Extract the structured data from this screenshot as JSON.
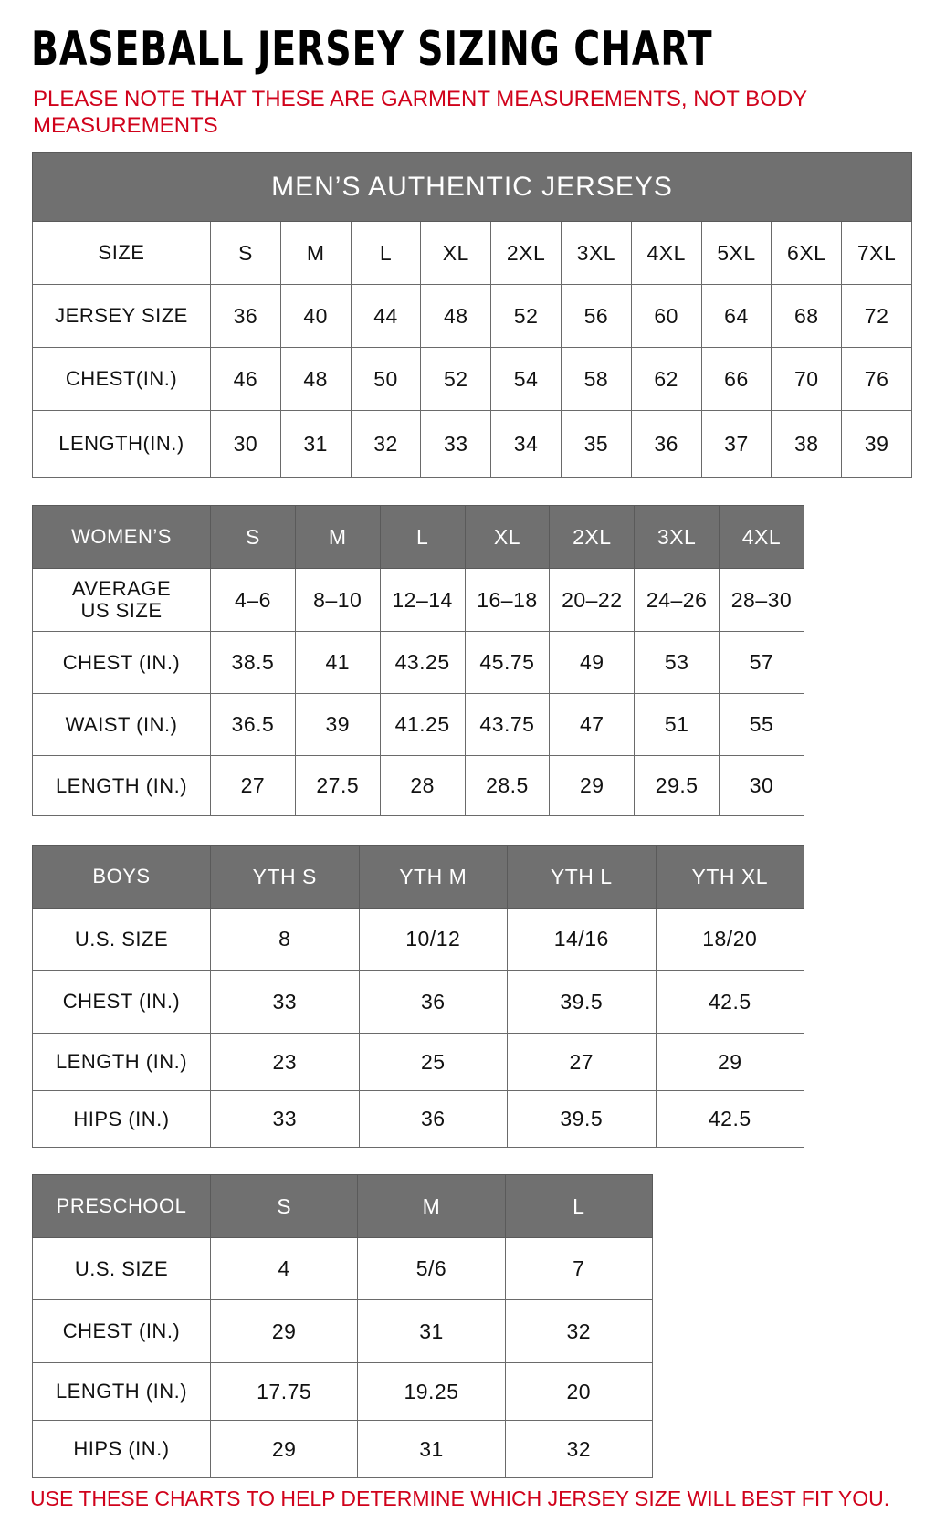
{
  "title": "BASEBALL JERSEY SIZING CHART",
  "note": "PLEASE NOTE THAT THESE ARE GARMENT MEASUREMENTS, NOT BODY MEASUREMENTS",
  "footer": "USE THESE CHARTS TO HELP DETERMINE WHICH JERSEY SIZE WILL BEST FIT YOU.",
  "colors": {
    "header_gray": "#707070",
    "note_red": "#d0021b",
    "border": "#6a6a6a"
  },
  "tables": [
    {
      "id": "mens",
      "caption": "MEN’S AUTHENTIC JERSEYS",
      "header": [
        "SIZE",
        "S",
        "M",
        "L",
        "XL",
        "2XL",
        "3XL",
        "4XL",
        "5XL",
        "6XL",
        "7XL"
      ],
      "header_style": "white",
      "rows": [
        [
          "JERSEY SIZE",
          "36",
          "40",
          "44",
          "48",
          "52",
          "56",
          "60",
          "64",
          "68",
          "72"
        ],
        [
          "CHEST(IN.)",
          "46",
          "48",
          "50",
          "52",
          "54",
          "58",
          "62",
          "66",
          "70",
          "76"
        ],
        [
          "LENGTH(IN.)",
          "30",
          "31",
          "32",
          "33",
          "34",
          "35",
          "36",
          "37",
          "38",
          "39"
        ]
      ]
    },
    {
      "id": "womens",
      "header": [
        "WOMEN’S",
        "S",
        "M",
        "L",
        "XL",
        "2XL",
        "3XL",
        "4XL"
      ],
      "header_style": "gray",
      "rows": [
        [
          "AVERAGE US SIZE",
          "4–6",
          "8–10",
          "12–14",
          "16–18",
          "20–22",
          "24–26",
          "28–30"
        ],
        [
          "CHEST (IN.)",
          "38.5",
          "41",
          "43.25",
          "45.75",
          "49",
          "53",
          "57"
        ],
        [
          "WAIST (IN.)",
          "36.5",
          "39",
          "41.25",
          "43.75",
          "47",
          "51",
          "55"
        ],
        [
          "LENGTH (IN.)",
          "27",
          "27.5",
          "28",
          "28.5",
          "29",
          "29.5",
          "30"
        ]
      ]
    },
    {
      "id": "boys",
      "header": [
        "BOYS",
        "YTH S",
        "YTH M",
        "YTH L",
        "YTH XL"
      ],
      "header_style": "gray",
      "rows": [
        [
          "U.S. SIZE",
          "8",
          "10/12",
          "14/16",
          "18/20"
        ],
        [
          "CHEST (IN.)",
          "33",
          "36",
          "39.5",
          "42.5"
        ],
        [
          "LENGTH (IN.)",
          "23",
          "25",
          "27",
          "29"
        ],
        [
          "HIPS (IN.)",
          "33",
          "36",
          "39.5",
          "42.5"
        ]
      ]
    },
    {
      "id": "preschool",
      "header": [
        "PRESCHOOL",
        "S",
        "M",
        "L"
      ],
      "header_style": "gray",
      "rows": [
        [
          "U.S. SIZE",
          "4",
          "5/6",
          "7"
        ],
        [
          "CHEST (IN.)",
          "29",
          "31",
          "32"
        ],
        [
          "LENGTH (IN.)",
          "17.75",
          "19.25",
          "20"
        ],
        [
          "HIPS (IN.)",
          "29",
          "31",
          "32"
        ]
      ]
    }
  ]
}
